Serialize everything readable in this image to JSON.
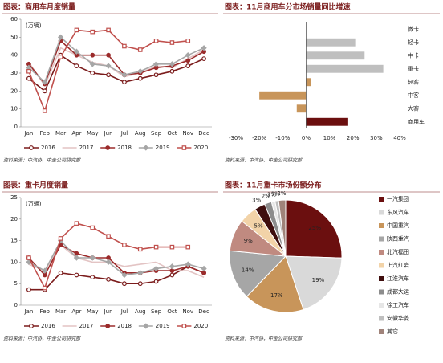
{
  "chart_data": [
    {
      "type": "line",
      "title": "图表：商用车月度销量",
      "unit": "(万辆)",
      "source": "资料来源：中汽协，中金公司研究部",
      "categories": [
        "Jan",
        "Feb",
        "Mar",
        "Apr",
        "May",
        "Jun",
        "Jul",
        "Aug",
        "Sep",
        "Oct",
        "Nov",
        "Dec"
      ],
      "ylim": [
        0,
        60
      ],
      "yticks": [
        0,
        10,
        20,
        30,
        40,
        50,
        60
      ],
      "series": [
        {
          "name": "2016",
          "color": "#7b1c1c",
          "marker": "circle-open",
          "values": [
            27,
            20,
            40,
            34,
            30,
            29,
            25,
            27,
            29,
            31,
            34,
            38
          ]
        },
        {
          "name": "2017",
          "color": "#e3c4c4",
          "marker": "none",
          "values": [
            36,
            23,
            44,
            40,
            36,
            34,
            28,
            30,
            34,
            33,
            38,
            43
          ]
        },
        {
          "name": "2018",
          "color": "#9b2b2b",
          "marker": "circle",
          "values": [
            35,
            24,
            48,
            40,
            40,
            40,
            29,
            30,
            33,
            34,
            37,
            42
          ]
        },
        {
          "name": "2019",
          "color": "#a6a6a6",
          "marker": "diamond",
          "values": [
            33,
            25,
            50,
            42,
            35,
            34,
            29,
            31,
            35,
            35,
            40,
            44
          ]
        },
        {
          "name": "2020",
          "color": "#c0504d",
          "marker": "square-open",
          "values": [
            31,
            9,
            39,
            54,
            53,
            54,
            45,
            43,
            48,
            47,
            48,
            null
          ]
        }
      ]
    },
    {
      "type": "hbar",
      "title": "图表：11月商用车分市场销量同比增速",
      "source": "资料来源：中汽协，中金公司研究部",
      "categories": [
        "微卡",
        "轻卡",
        "中卡",
        "重卡",
        "轻客",
        "中客",
        "大客",
        "商用车"
      ],
      "values": [
        0,
        21,
        25,
        33,
        2,
        -20,
        -4,
        18
      ],
      "colors": [
        "#bfbfbf",
        "#bfbfbf",
        "#bfbfbf",
        "#bfbfbf",
        "#c8955a",
        "#c8955a",
        "#c8955a",
        "#6b0f0f"
      ],
      "xlim": [
        -30,
        40
      ],
      "xticks": [
        {
          "value": -30,
          "label": "-30%"
        },
        {
          "value": -20,
          "label": "-20%"
        },
        {
          "value": -10,
          "label": "-10%"
        },
        {
          "value": 0,
          "label": "0%"
        },
        {
          "value": 10,
          "label": "10%"
        },
        {
          "value": 20,
          "label": "20%"
        },
        {
          "value": 30,
          "label": "30%"
        },
        {
          "value": 40,
          "label": "40%"
        }
      ]
    },
    {
      "type": "line",
      "title": "图表：重卡月度销量",
      "unit": "(万辆)",
      "source": "资料来源：中汽协，中金公司研究部",
      "categories": [
        "Jan",
        "Feb",
        "Mar",
        "Apr",
        "May",
        "Jun",
        "Jul",
        "Aug",
        "Sep",
        "Oct",
        "Nov",
        "Dec"
      ],
      "ylim": [
        0,
        25
      ],
      "yticks": [
        0,
        5,
        10,
        15,
        20,
        25
      ],
      "series": [
        {
          "name": "2016",
          "color": "#7b1c1c",
          "marker": "circle-open",
          "values": [
            3.6,
            3.6,
            7.5,
            7,
            6.5,
            6,
            5,
            5,
            5.5,
            7,
            9,
            7.5
          ]
        },
        {
          "name": "2017",
          "color": "#e3c4c4",
          "marker": "none",
          "values": [
            9.5,
            8,
            14,
            11,
            10,
            10,
            9,
            9.5,
            10,
            8,
            8,
            6.5
          ]
        },
        {
          "name": "2018",
          "color": "#9b2b2b",
          "marker": "circle",
          "values": [
            11,
            7,
            14,
            12,
            11,
            11,
            7.5,
            7.5,
            8,
            8,
            9,
            7.5
          ]
        },
        {
          "name": "2019",
          "color": "#a6a6a6",
          "marker": "diamond",
          "values": [
            10,
            8,
            15,
            11,
            11,
            10,
            7,
            7.5,
            8.5,
            9,
            9.5,
            8.5
          ]
        },
        {
          "name": "2020",
          "color": "#c0504d",
          "marker": "square-open",
          "values": [
            11,
            4,
            15.5,
            19,
            18,
            16,
            14,
            13,
            13.5,
            13.5,
            13.5,
            null
          ]
        }
      ]
    },
    {
      "type": "pie",
      "title": "图表：11月重卡市场份额分布",
      "source": "资料来源：中汽协，中金公司研究部",
      "categories": [
        "一汽集团",
        "东风汽车",
        "中国重汽",
        "陕西重汽",
        "北汽福田",
        "上汽红岩",
        "江淮汽车",
        "成都大运",
        "徐工汽车",
        "安徽华菱",
        "其它"
      ],
      "values": [
        25,
        19,
        17,
        14,
        9,
        5,
        3,
        2,
        1,
        1,
        2
      ],
      "value_labels": [
        "25%",
        "19%",
        "17%",
        "14%",
        "9%",
        "5%",
        "3%",
        "2%",
        "1%",
        "1%",
        "2%"
      ],
      "colors": [
        "#6b0f0f",
        "#d9d9d9",
        "#c8955a",
        "#a6a6a6",
        "#c08a80",
        "#f2d3a8",
        "#3f0e0e",
        "#8c8c8c",
        "#e6e6e6",
        "#bfbfbf",
        "#a0837a"
      ]
    }
  ]
}
